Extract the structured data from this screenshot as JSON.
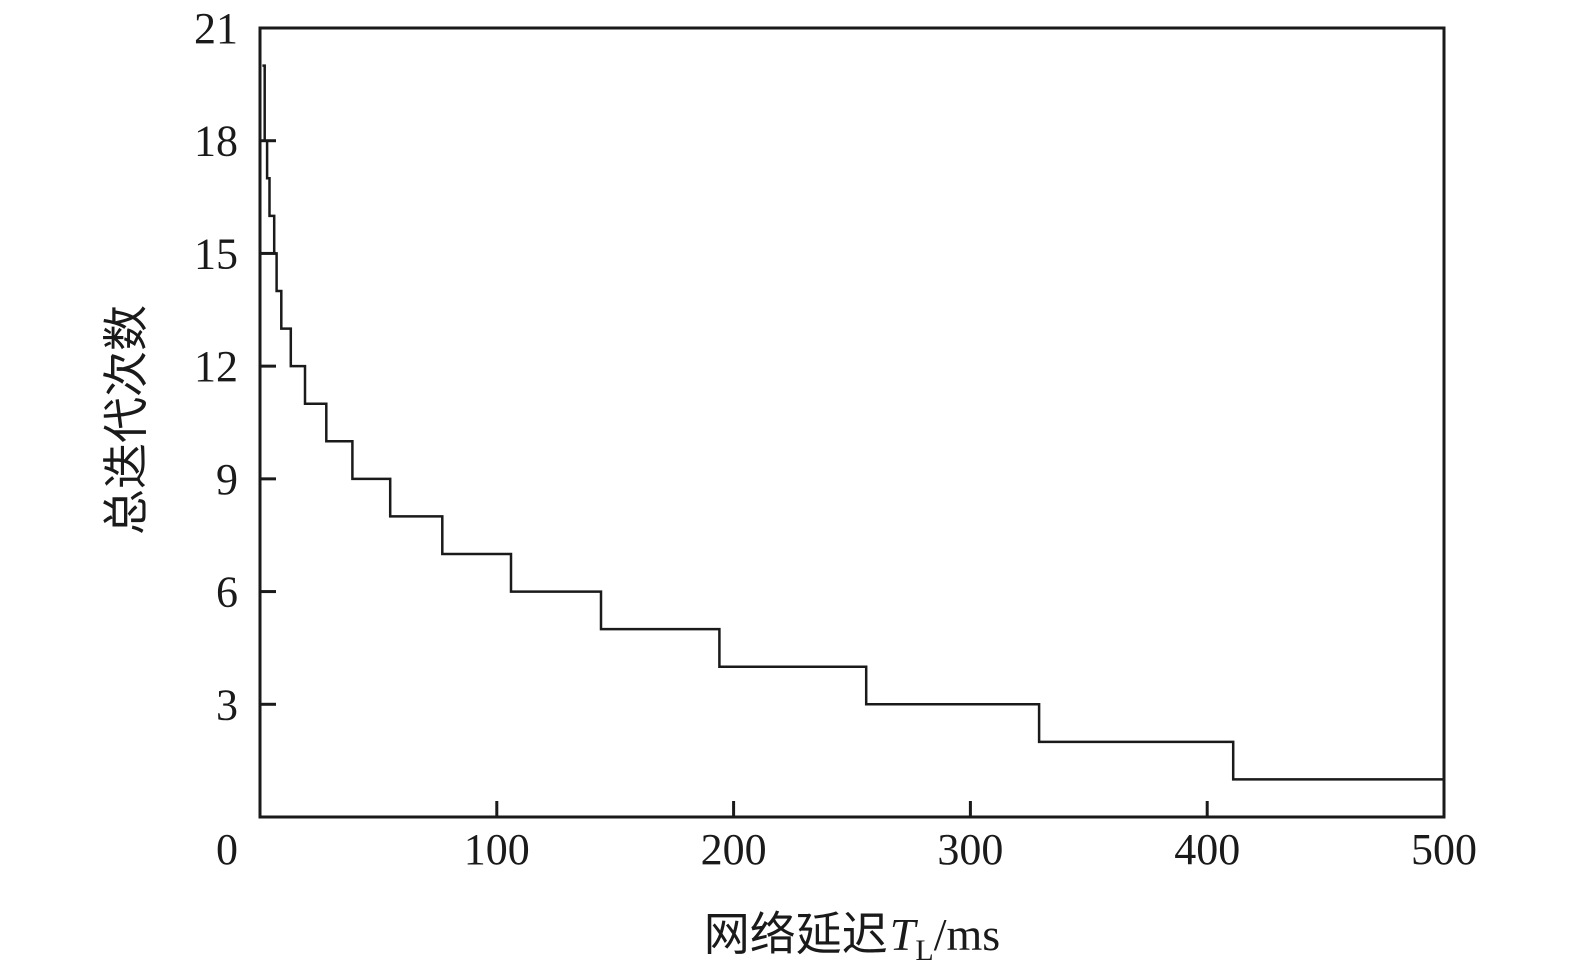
{
  "chart_data": {
    "type": "line",
    "step": true,
    "xlabel": {
      "text": "网络延迟",
      "symbol": "T",
      "subscript": "L",
      "unit": "/ms"
    },
    "ylabel": "总迭代次数",
    "xlim": [
      0,
      500
    ],
    "ylim": [
      0,
      21
    ],
    "xticks": [
      "0",
      "100",
      "200",
      "300",
      "400",
      "500"
    ],
    "yticks": [
      "3",
      "6",
      "9",
      "12",
      "15",
      "18",
      "21"
    ],
    "grid": false,
    "color": "#1a1a1a",
    "series": [
      {
        "points": [
          [
            1,
            20
          ],
          [
            2,
            18
          ],
          [
            3,
            17
          ],
          [
            4,
            16
          ],
          [
            6,
            15
          ],
          [
            7,
            14
          ],
          [
            9,
            13
          ],
          [
            13,
            12
          ],
          [
            19,
            11
          ],
          [
            28,
            10
          ],
          [
            39,
            9
          ],
          [
            55,
            8
          ],
          [
            77,
            7
          ],
          [
            106,
            6
          ],
          [
            144,
            5
          ],
          [
            194,
            4
          ],
          [
            256,
            3
          ],
          [
            329,
            2
          ],
          [
            411,
            1
          ],
          [
            500,
            1
          ]
        ]
      }
    ]
  }
}
